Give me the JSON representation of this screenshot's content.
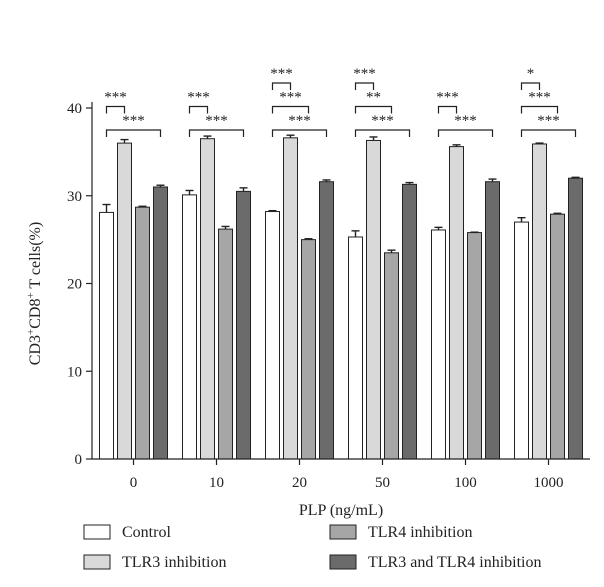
{
  "chart_data": {
    "type": "bar",
    "xlabel": "PLP (ng/mL)",
    "ylabel": "CD3+CD8+ T cells(%)",
    "ylim": [
      0,
      40
    ],
    "yticks": [
      0,
      10,
      20,
      30,
      40
    ],
    "categories": [
      "0",
      "10",
      "20",
      "50",
      "100",
      "1000"
    ],
    "series": [
      {
        "name": "Control",
        "color": "#ffffff",
        "values": [
          28.1,
          30.1,
          28.2,
          25.3,
          26.1,
          27.0
        ],
        "errors": [
          0.9,
          0.5,
          0.1,
          0.7,
          0.3,
          0.5
        ]
      },
      {
        "name": "TLR3 inhibition",
        "color": "#d9d9d9",
        "values": [
          36.0,
          36.5,
          36.6,
          36.3,
          35.6,
          35.9
        ],
        "errors": [
          0.4,
          0.3,
          0.3,
          0.4,
          0.2,
          0.1
        ]
      },
      {
        "name": "TLR4 inhibition",
        "color": "#a6a6a6",
        "values": [
          28.7,
          26.2,
          25.0,
          23.5,
          25.8,
          27.9
        ],
        "errors": [
          0.1,
          0.3,
          0.1,
          0.3,
          0.05,
          0.1
        ]
      },
      {
        "name": "TLR3 and TLR4 inhibition",
        "color": "#6b6b6b",
        "values": [
          31.0,
          30.5,
          31.6,
          31.3,
          31.6,
          32.0
        ],
        "errors": [
          0.2,
          0.4,
          0.2,
          0.2,
          0.3,
          0.1
        ]
      }
    ],
    "significance": [
      {
        "category": 0,
        "from": 0,
        "to": 1,
        "label": "***"
      },
      {
        "category": 0,
        "from": 0,
        "to": 3,
        "label": "***"
      },
      {
        "category": 1,
        "from": 0,
        "to": 1,
        "label": "***"
      },
      {
        "category": 1,
        "from": 0,
        "to": 3,
        "label": "***"
      },
      {
        "category": 2,
        "from": 0,
        "to": 1,
        "label": "***"
      },
      {
        "category": 2,
        "from": 0,
        "to": 2,
        "label": "***"
      },
      {
        "category": 2,
        "from": 0,
        "to": 3,
        "label": "***"
      },
      {
        "category": 3,
        "from": 0,
        "to": 1,
        "label": "***"
      },
      {
        "category": 3,
        "from": 0,
        "to": 2,
        "label": "**"
      },
      {
        "category": 3,
        "from": 0,
        "to": 3,
        "label": "***"
      },
      {
        "category": 4,
        "from": 0,
        "to": 1,
        "label": "***"
      },
      {
        "category": 4,
        "from": 0,
        "to": 3,
        "label": "***"
      },
      {
        "category": 5,
        "from": 0,
        "to": 1,
        "label": "*"
      },
      {
        "category": 5,
        "from": 0,
        "to": 2,
        "label": "***"
      },
      {
        "category": 5,
        "from": 0,
        "to": 3,
        "label": "***"
      }
    ],
    "legend_placement": "bottom",
    "grid": false
  }
}
